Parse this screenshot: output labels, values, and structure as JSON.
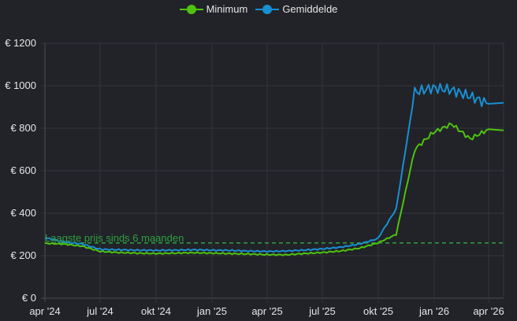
{
  "legend": [
    {
      "label": "Minimum",
      "color": "#4fc20f"
    },
    {
      "label": "Gemiddelde",
      "color": "#1a8fd1"
    }
  ],
  "reference_line": {
    "label": "Laagste prijs sinds 6 maanden",
    "value": 260,
    "color": "#2ea043"
  },
  "y_ticks": [
    "€ 0",
    "€ 200",
    "€ 400",
    "€ 600",
    "€ 800",
    "€ 1000",
    "€ 1200"
  ],
  "x_ticks": [
    "apr '24",
    "jul '24",
    "okt '24",
    "jan '25",
    "apr '25",
    "jul '25",
    "okt '25",
    "jan '26",
    "apr '26"
  ],
  "colors": {
    "background": "#212328",
    "grid": "#33363c",
    "axis": "#4a4d53"
  },
  "chart_data": {
    "type": "line",
    "title": "",
    "xlabel": "",
    "ylabel": "",
    "ylim": [
      0,
      1200
    ],
    "grid": true,
    "legend_position": "top",
    "x_ticks": [
      "apr '24",
      "jul '24",
      "okt '24",
      "jan '25",
      "apr '25",
      "jul '25",
      "okt '25",
      "jan '26",
      "apr '26"
    ],
    "y_ticks": [
      0,
      200,
      400,
      600,
      800,
      1000,
      1200
    ],
    "reference_lines": [
      {
        "label": "Laagste prijs sinds 6 maanden",
        "value": 260,
        "style": "dashed"
      }
    ],
    "x": [
      "apr '24",
      "mei '24",
      "jun '24",
      "jul '24",
      "aug '24",
      "sep '24",
      "okt '24",
      "nov '24",
      "dec '24",
      "jan '25",
      "feb '25",
      "mrt '25",
      "apr '25",
      "mei '25",
      "jun '25",
      "jul '25",
      "aug '25",
      "sep '25",
      "okt '25",
      "nov '25",
      "dec '25",
      "jan '26",
      "feb '26",
      "mrt '26",
      "apr '26"
    ],
    "series": [
      {
        "name": "Minimum",
        "color": "#4fc20f",
        "values": [
          258,
          255,
          245,
          220,
          215,
          212,
          210,
          212,
          214,
          212,
          210,
          208,
          205,
          204,
          210,
          215,
          222,
          235,
          260,
          300,
          700,
          780,
          820,
          750,
          795
        ]
      },
      {
        "name": "Gemiddelde",
        "color": "#1a8fd1",
        "values": [
          285,
          265,
          255,
          230,
          228,
          226,
          225,
          226,
          228,
          226,
          225,
          222,
          220,
          222,
          226,
          232,
          240,
          255,
          280,
          420,
          970,
          990,
          980,
          950,
          915
        ]
      }
    ]
  }
}
